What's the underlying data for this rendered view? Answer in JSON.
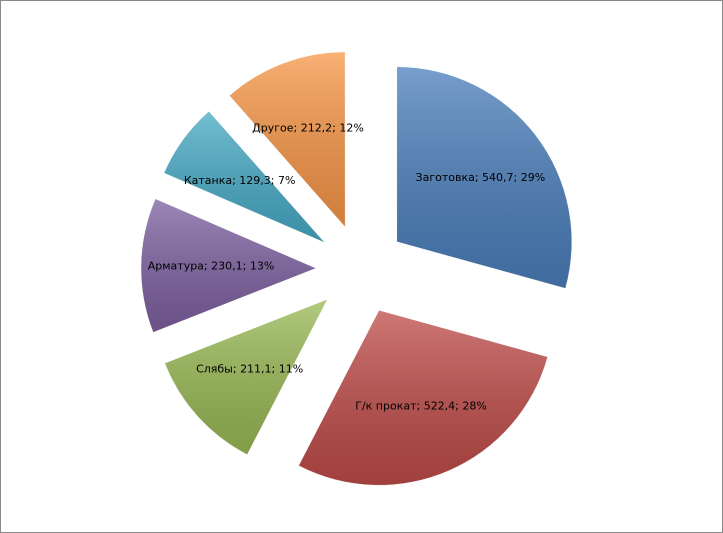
{
  "chart_data": {
    "type": "pie",
    "values": [
      540.7,
      522.4,
      211.1,
      230.1,
      129.3,
      212.2
    ],
    "value_labels": [
      "Заготовка; 540,7; 29%",
      "Г/к прокат; 522,4; 28%",
      "Слябы; 211,1; 11%",
      "Арматура; 230,1; 13%",
      "Катанка; 129,3; 7%",
      "Другое; 212,2; 12%"
    ],
    "colors": [
      "#4a7ebb",
      "#be4b48",
      "#98b954",
      "#7d60a0",
      "#46aac5",
      "#f79646"
    ]
  }
}
